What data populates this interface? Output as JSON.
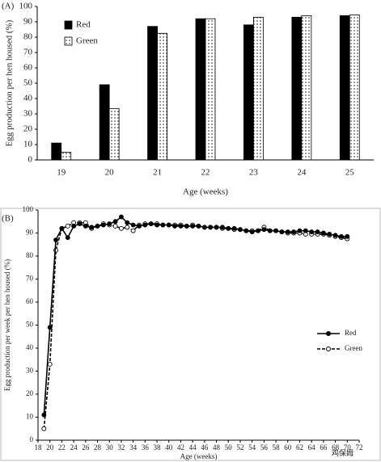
{
  "chart_data": [
    {
      "type": "bar",
      "title": "(A)",
      "y_label": "Egg production per hen housed (%)",
      "x_label": "Age (weeks)",
      "categories": [
        "19",
        "20",
        "21",
        "22",
        "23",
        "24",
        "25"
      ],
      "series": [
        {
          "name": "Red",
          "color": "#000000",
          "values": [
            11,
            49,
            87,
            92,
            88,
            93,
            94
          ]
        },
        {
          "name": "Green",
          "color": "#ffffff",
          "pattern": "dots",
          "values": [
            5,
            33.5,
            82.5,
            92,
            93,
            94,
            94.5
          ]
        }
      ],
      "ylim": [
        0,
        100
      ],
      "yticks": [
        0,
        10,
        20,
        30,
        40,
        50,
        60,
        70,
        80,
        90,
        100
      ],
      "legend": "upper left"
    },
    {
      "type": "line",
      "title": "(B)",
      "y_label": "Egg production per week per hen housed (%)",
      "x_label": "Age (weeks)",
      "x": [
        19,
        20,
        21,
        22,
        23,
        24,
        25,
        26,
        27,
        28,
        29,
        30,
        31,
        32,
        33,
        34,
        35,
        36,
        37,
        38,
        39,
        40,
        41,
        42,
        43,
        44,
        45,
        46,
        47,
        48,
        49,
        50,
        51,
        52,
        53,
        54,
        55,
        56,
        57,
        58,
        59,
        60,
        61,
        62,
        63,
        64,
        65,
        66,
        67,
        68,
        69,
        70
      ],
      "series": [
        {
          "name": "Red",
          "color": "#000000",
          "marker": "filled",
          "line_style": "solid",
          "values": [
            11,
            49,
            87,
            92,
            88,
            93,
            94,
            93,
            92.5,
            93,
            93.5,
            94,
            95,
            97,
            94.5,
            93.5,
            93,
            93.5,
            94,
            93.5,
            93.5,
            93.5,
            93,
            93,
            93,
            93,
            93,
            92.5,
            92.5,
            92.5,
            92.5,
            92,
            92,
            91.5,
            91,
            90.5,
            91,
            91.5,
            91,
            91,
            90.5,
            90.5,
            90.5,
            91,
            91,
            90.5,
            90.5,
            90,
            89.5,
            89,
            88.5,
            88.5
          ]
        },
        {
          "name": "Green",
          "color": "#000000",
          "marker": "open",
          "line_style": "dashed",
          "values": [
            5,
            33,
            82.5,
            92,
            93,
            94.5,
            94.5,
            94.5,
            92,
            93,
            94,
            93.5,
            93,
            92,
            92.5,
            91,
            93.5,
            94,
            94,
            94,
            93.5,
            93.5,
            93.5,
            93.5,
            93,
            93.5,
            93,
            92.5,
            92.5,
            92.5,
            92,
            92,
            91.5,
            91.5,
            91,
            91,
            91,
            92.5,
            91,
            91,
            90.5,
            90,
            90,
            90,
            89.5,
            89.5,
            89.5,
            89.5,
            89,
            88.5,
            88,
            87.5
          ]
        }
      ],
      "xlim": [
        18,
        72
      ],
      "xticks": [
        18,
        20,
        22,
        24,
        26,
        28,
        30,
        32,
        34,
        36,
        38,
        40,
        42,
        44,
        46,
        48,
        50,
        52,
        54,
        56,
        58,
        60,
        62,
        64,
        66,
        68,
        70,
        72
      ],
      "ylim": [
        0,
        100
      ],
      "yticks": [
        0,
        10,
        20,
        30,
        40,
        50,
        60,
        70,
        80,
        90,
        100
      ],
      "legend": "center right"
    }
  ],
  "watermark": "鸡保姆"
}
